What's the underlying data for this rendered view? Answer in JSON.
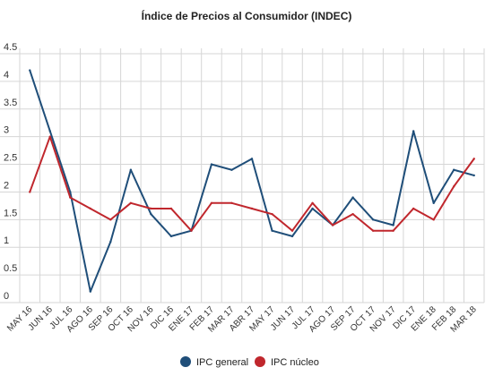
{
  "chart_data": {
    "type": "line",
    "title": "Índice de Precios al Consumidor (INDEC)",
    "xlabel": "",
    "ylabel": "",
    "ylim": [
      0,
      4.5
    ],
    "yticks": [
      "0",
      "0.5",
      "1",
      "1.5",
      "2",
      "2.5",
      "3",
      "3.5",
      "4",
      "4.5"
    ],
    "grid": true,
    "legend": "bottom-center",
    "categories": [
      "MAY 16",
      "JUN 16",
      "JUL 16",
      "AGO 16",
      "SEP 16",
      "OCT 16",
      "NOV 16",
      "DIC 16",
      "ENE 17",
      "FEB 17",
      "MAR 17",
      "ABR 17",
      "MAY 17",
      "JUN 17",
      "JUL 17",
      "AGO 17",
      "SEP 17",
      "OCT 17",
      "NOV 17",
      "DIC 17",
      "ENE 18",
      "FEB 18",
      "MAR 18"
    ],
    "series": [
      {
        "name": "IPC general",
        "color": "#1f4e79",
        "values": [
          4.2,
          3.1,
          2.0,
          0.2,
          1.1,
          2.4,
          1.6,
          1.2,
          1.3,
          2.5,
          2.4,
          2.6,
          1.3,
          1.2,
          1.7,
          1.4,
          1.9,
          1.5,
          1.4,
          3.1,
          1.8,
          2.4,
          2.3
        ]
      },
      {
        "name": "IPC núcleo",
        "color": "#c0272d",
        "values": [
          2.0,
          3.0,
          1.9,
          1.7,
          1.5,
          1.8,
          1.7,
          1.7,
          1.3,
          1.8,
          1.8,
          1.7,
          1.6,
          1.3,
          1.8,
          1.4,
          1.6,
          1.3,
          1.3,
          1.7,
          1.5,
          2.1,
          2.6
        ]
      }
    ]
  }
}
